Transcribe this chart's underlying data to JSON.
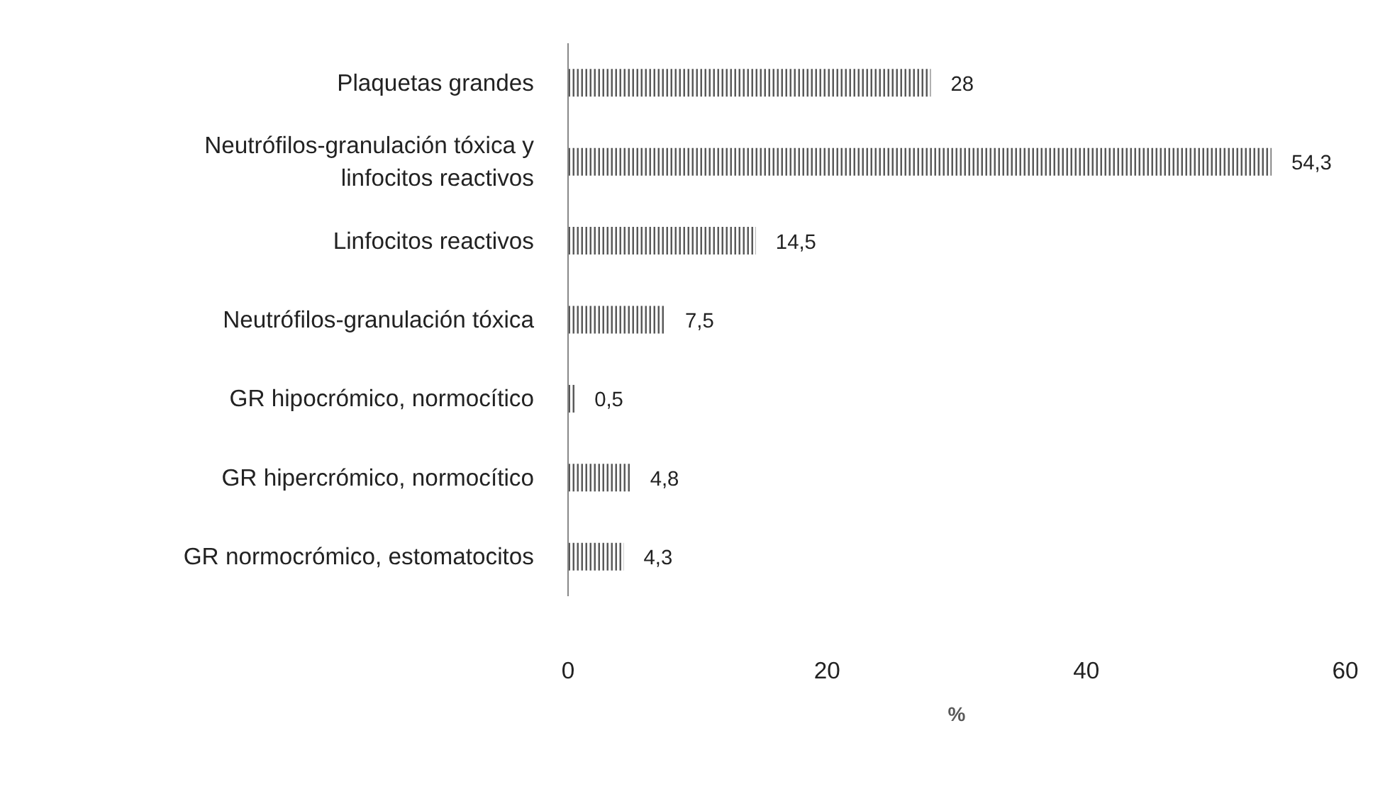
{
  "chart_data": {
    "type": "bar",
    "orientation": "horizontal",
    "xlabel": "%",
    "categories": [
      "Plaquetas grandes",
      "Neutrófilos-granulación tóxica y linfocitos reactivos",
      "Linfocitos reactivos",
      "Neutrófilos-granulación tóxica",
      "GR hipocrómico, normocítico",
      "GR hipercrómico, normocítico",
      "GR normocrómico, estomatocitos"
    ],
    "values": [
      28,
      54.3,
      14.5,
      7.5,
      0.5,
      4.8,
      4.3
    ],
    "value_labels": [
      "28",
      "54,3",
      "14,5",
      "7,5",
      "0,5",
      "4,8",
      "4,3"
    ],
    "color": "#595959",
    "xlim": [
      0,
      60
    ],
    "xticks": [
      0,
      20,
      40,
      60
    ],
    "grid": false
  }
}
